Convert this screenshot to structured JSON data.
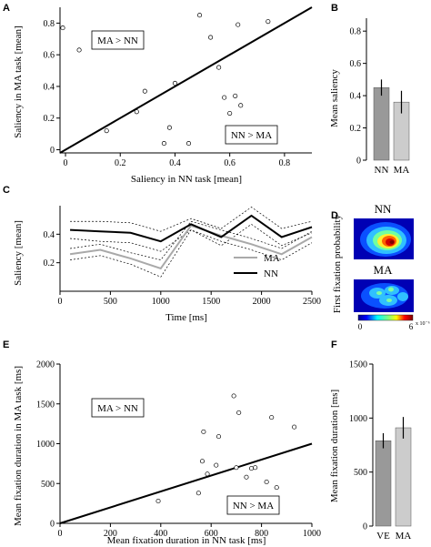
{
  "panel_labels": {
    "A": "A",
    "B": "B",
    "C": "C",
    "D": "D",
    "E": "E",
    "F": "F"
  },
  "colors": {
    "nn_bar": "#999999",
    "ma_bar": "#cccccc",
    "ma_line": "#a9a9a9",
    "nn_line": "#000000"
  },
  "chart_data": [
    {
      "id": "A",
      "type": "scatter",
      "xlabel": "Saliency in NN task [mean]",
      "ylabel": "Saliency in MA task [mean]",
      "xlim": [
        -0.02,
        0.9
      ],
      "ylim": [
        -0.02,
        0.9
      ],
      "xticks": [
        0,
        0.2,
        0.4,
        0.6,
        0.8
      ],
      "xtick_labels": [
        "0",
        "0.2",
        "0.4",
        "0.6",
        "0.8"
      ],
      "yticks": [
        0,
        0.2,
        0.4,
        0.6,
        0.8
      ],
      "ytick_labels": [
        "0",
        "0.2",
        "0.4",
        "0.6",
        "0.8"
      ],
      "annotations": [
        "MA > NN",
        "NN > MA"
      ],
      "diagonal": true,
      "points": [
        [
          -0.01,
          0.77
        ],
        [
          0.05,
          0.63
        ],
        [
          0.15,
          0.12
        ],
        [
          0.26,
          0.24
        ],
        [
          0.29,
          0.37
        ],
        [
          0.36,
          0.04
        ],
        [
          0.38,
          0.14
        ],
        [
          0.4,
          0.42
        ],
        [
          0.45,
          0.04
        ],
        [
          0.49,
          0.85
        ],
        [
          0.53,
          0.71
        ],
        [
          0.56,
          0.52
        ],
        [
          0.58,
          0.33
        ],
        [
          0.6,
          0.23
        ],
        [
          0.62,
          0.34
        ],
        [
          0.63,
          0.79
        ],
        [
          0.64,
          0.28
        ],
        [
          0.74,
          0.81
        ]
      ]
    },
    {
      "id": "B",
      "type": "bar",
      "ylabel": "Mean saliency",
      "categories": [
        "NN",
        "MA"
      ],
      "values": [
        0.45,
        0.36
      ],
      "errors": [
        0.05,
        0.07
      ],
      "ylim": [
        0,
        0.88
      ],
      "yticks": [
        0,
        0.2,
        0.4,
        0.6,
        0.8
      ],
      "ytick_labels": [
        "0",
        "0.2",
        "0.4",
        "0.6",
        "0.8"
      ]
    },
    {
      "id": "C",
      "type": "line",
      "xlabel": "Time [ms]",
      "ylabel": "Saliency [mean]",
      "xlim": [
        0,
        2500
      ],
      "ylim": [
        0,
        0.6
      ],
      "xticks": [
        0,
        500,
        1000,
        1500,
        2000,
        2500
      ],
      "xtick_labels": [
        "0",
        "500",
        "1000",
        "1500",
        "2000",
        "2500"
      ],
      "yticks": [
        0.2,
        0.4
      ],
      "ytick_labels": [
        "0.2",
        "0.4"
      ],
      "x": [
        100,
        400,
        700,
        1000,
        1300,
        1600,
        1900,
        2200,
        2500
      ],
      "series": [
        {
          "name": "MA",
          "values": [
            0.26,
            0.29,
            0.23,
            0.16,
            0.46,
            0.39,
            0.33,
            0.26,
            0.38
          ],
          "upper": [
            0.3,
            0.33,
            0.27,
            0.22,
            0.49,
            0.43,
            0.37,
            0.3,
            0.42
          ],
          "lower": [
            0.22,
            0.25,
            0.19,
            0.1,
            0.43,
            0.35,
            0.29,
            0.22,
            0.34
          ]
        },
        {
          "name": "NN",
          "values": [
            0.43,
            0.42,
            0.41,
            0.35,
            0.47,
            0.38,
            0.53,
            0.38,
            0.45
          ],
          "upper": [
            0.49,
            0.49,
            0.48,
            0.42,
            0.51,
            0.44,
            0.59,
            0.44,
            0.49
          ],
          "lower": [
            0.37,
            0.35,
            0.34,
            0.28,
            0.43,
            0.32,
            0.47,
            0.32,
            0.41
          ]
        }
      ]
    },
    {
      "id": "D",
      "type": "heatmap",
      "ylabel": "First fixation probability",
      "maps": [
        "NN",
        "MA"
      ],
      "colorbar_ticks": [
        "0",
        "6"
      ],
      "colorbar_exponent": "x 10⁻⁶"
    },
    {
      "id": "E",
      "type": "scatter",
      "xlabel": "Mean fixation duration in NN task [ms]",
      "ylabel": "Mean fixation duration in MA task [ms]",
      "xlim": [
        0,
        1000
      ],
      "ylim": [
        0,
        2000
      ],
      "xticks": [
        0,
        200,
        400,
        600,
        800,
        1000
      ],
      "xtick_labels": [
        "0",
        "200",
        "400",
        "600",
        "800",
        "1000"
      ],
      "yticks": [
        0,
        500,
        1000,
        1500,
        2000
      ],
      "ytick_labels": [
        "0",
        "500",
        "1000",
        "1500",
        "2000"
      ],
      "annotations": [
        "MA > NN",
        "NN > MA"
      ],
      "regression": [
        [
          0,
          0
        ],
        [
          1000,
          1000
        ]
      ],
      "points": [
        [
          390,
          280
        ],
        [
          550,
          380
        ],
        [
          565,
          780
        ],
        [
          570,
          1150
        ],
        [
          585,
          620
        ],
        [
          620,
          730
        ],
        [
          630,
          1090
        ],
        [
          690,
          1600
        ],
        [
          700,
          700
        ],
        [
          710,
          1390
        ],
        [
          740,
          580
        ],
        [
          760,
          690
        ],
        [
          775,
          700
        ],
        [
          820,
          520
        ],
        [
          840,
          1330
        ],
        [
          860,
          450
        ],
        [
          930,
          1210
        ]
      ]
    },
    {
      "id": "F",
      "type": "bar",
      "ylabel": "Mean fixation duration [ms]",
      "categories": [
        "VE",
        "MA"
      ],
      "values": [
        790,
        910
      ],
      "errors": [
        70,
        100
      ],
      "ylim": [
        0,
        1500
      ],
      "yticks": [
        0,
        500,
        1000,
        1500
      ],
      "ytick_labels": [
        "0",
        "500",
        "1000",
        "1500"
      ]
    }
  ]
}
